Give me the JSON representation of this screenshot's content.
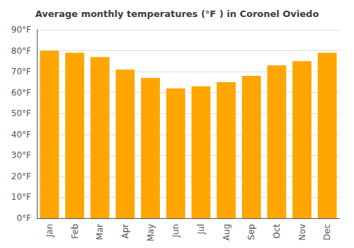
{
  "chart_data": {
    "type": "bar",
    "title": "Average monthly temperatures (°F ) in Coronel Oviedo",
    "categories": [
      "Jan",
      "Feb",
      "Mar",
      "Apr",
      "May",
      "Jun",
      "Jul",
      "Aug",
      "Sep",
      "Oct",
      "Nov",
      "Dec"
    ],
    "values": [
      80,
      79,
      77,
      71,
      67,
      62,
      63,
      65,
      68,
      73,
      75,
      79
    ],
    "color": "#FFA500",
    "ylim": [
      0,
      90
    ],
    "yticks": [
      {
        "value": 0,
        "label": "0°F"
      },
      {
        "value": 10,
        "label": "10°F"
      },
      {
        "value": 20,
        "label": "20°F"
      },
      {
        "value": 30,
        "label": "30°F"
      },
      {
        "value": 40,
        "label": "40°F"
      },
      {
        "value": 50,
        "label": "50°F"
      },
      {
        "value": 60,
        "label": "60°F"
      },
      {
        "value": 70,
        "label": "70°F"
      },
      {
        "value": 80,
        "label": "80°F"
      },
      {
        "value": 90,
        "label": "90°F"
      }
    ],
    "grid": true
  }
}
